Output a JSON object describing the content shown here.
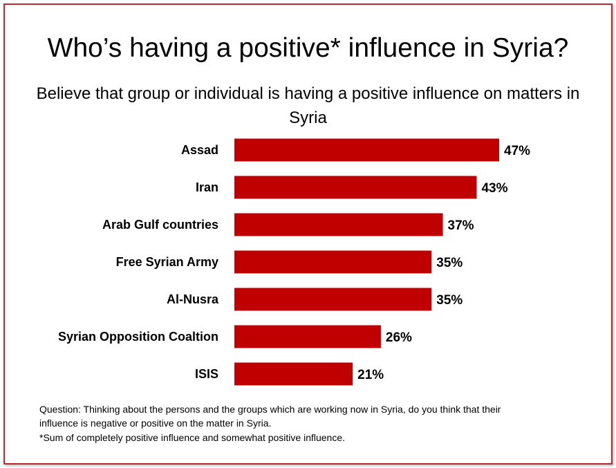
{
  "title": "Who’s having a positive* influence in Syria?",
  "subtitle": "Believe that group or individual is having a positive influence on matters in Syria",
  "chart_data": {
    "type": "bar",
    "orientation": "horizontal",
    "categories": [
      "Assad",
      "Iran",
      "Arab Gulf countries",
      "Free Syrian Army",
      "Al-Nusra",
      "Syrian Opposition Coaltion",
      "ISIS"
    ],
    "values": [
      47,
      43,
      37,
      35,
      35,
      26,
      21
    ],
    "value_labels": [
      "47%",
      "43%",
      "37%",
      "35%",
      "35%",
      "26%",
      "21%"
    ],
    "unit": "%",
    "xlim": [
      0,
      50
    ],
    "bar_color": "#c00000",
    "grid": false,
    "legend": "none"
  },
  "notes": {
    "question_line1": "Question: Thinking about the persons and the groups which are working now in Syria, do you think that their",
    "question_line2": "influence is negative or positive on the matter in Syria.",
    "footnote": "*Sum of completely positive influence and somewhat positive influence."
  },
  "colors": {
    "border": "#c0282d",
    "bar": "#c00000"
  }
}
